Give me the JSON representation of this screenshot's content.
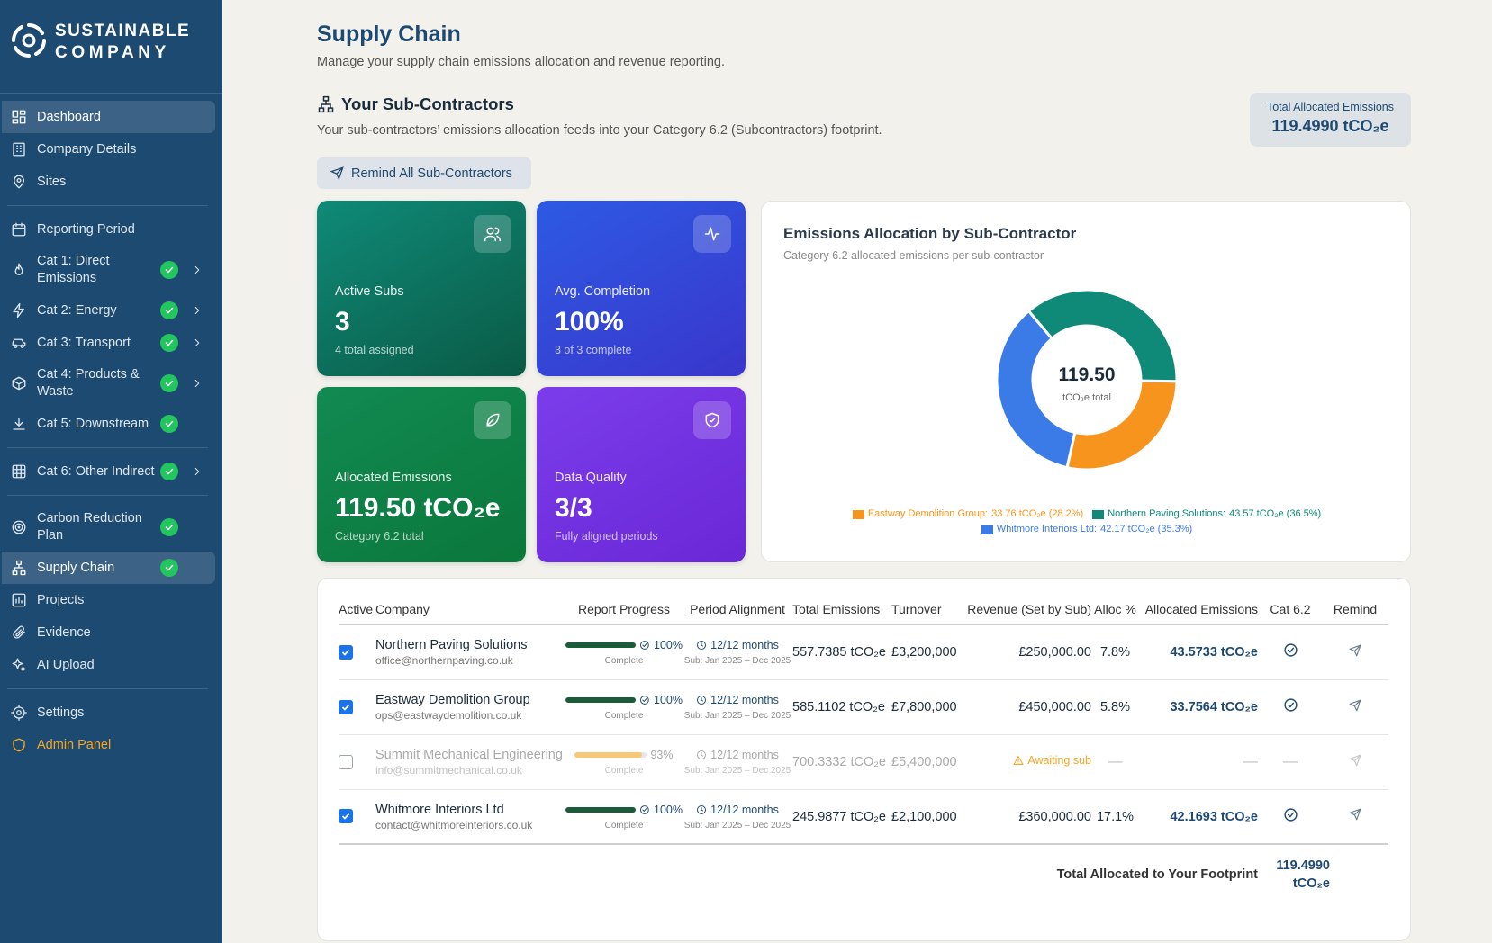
{
  "sidebar": {
    "logo": [
      "SUSTAINABLE",
      "COMPANY"
    ],
    "nav": [
      [
        {
          "label": "Dashboard",
          "active": true
        },
        {
          "label": "Company Details"
        },
        {
          "label": "Sites"
        }
      ],
      [
        {
          "label": "Reporting Period"
        },
        {
          "label": "Cat 1: Direct Emissions",
          "done": true,
          "expand": true
        },
        {
          "label": "Cat 2: Energy",
          "done": true,
          "expand": true
        },
        {
          "label": "Cat 3: Transport",
          "done": true,
          "expand": true
        },
        {
          "label": "Cat 4: Products & Waste",
          "done": true,
          "expand": true
        },
        {
          "label": "Cat 5: Downstream",
          "done": true
        }
      ],
      [
        {
          "label": "Cat 6: Other Indirect",
          "done": true,
          "expand": true
        }
      ],
      [
        {
          "label": "Carbon Reduction Plan",
          "done": true
        },
        {
          "label": "Supply Chain",
          "done": true,
          "active": true
        },
        {
          "label": "Projects"
        },
        {
          "label": "Evidence"
        },
        {
          "label": "AI Upload"
        }
      ],
      [
        {
          "label": "Settings"
        },
        {
          "label": "Admin Panel",
          "admin": true
        }
      ]
    ]
  },
  "header": {
    "title": "Supply Chain",
    "subtitle": "Manage your supply chain emissions allocation and revenue reporting."
  },
  "section": {
    "title": "Your Sub-Contractors",
    "description": "Your sub-contractors’ emissions allocation feeds into your Category 6.2 (Subcontractors) footprint.",
    "button": "Remind All Sub-Contractors"
  },
  "badge": {
    "label": "Total Allocated Emissions",
    "value": "119.4990 tCO₂e"
  },
  "stats": [
    {
      "label": "Active Subs",
      "value": "3",
      "note": "4 total assigned"
    },
    {
      "label": "Avg. Completion",
      "value": "100%",
      "note": "3 of 3 complete"
    },
    {
      "label": "Allocated Emissions",
      "value": "119.50 tCO₂e",
      "note": "Category 6.2 total"
    },
    {
      "label": "Data Quality",
      "value": "3/3",
      "note": "Fully aligned periods"
    }
  ],
  "chart_data": {
    "type": "donut",
    "title": "Emissions Allocation by Sub-Contractor",
    "subtitle": "Category 6.2 allocated emissions per sub-contractor",
    "categories": [
      "Eastway Demolition Group",
      "Northern Paving Solutions",
      "Whitmore Interiors Ltd"
    ],
    "values": [
      33.76,
      43.57,
      42.17
    ],
    "value_labels": [
      "33.76 tCO₂e (28.2%)",
      "43.57 tCO₂e (36.5%)",
      "42.17 tCO₂e (35.3%)"
    ],
    "colors": [
      "#f7941d",
      "#0f8a78",
      "#3b7be8"
    ],
    "center_value": "119.50",
    "center_label": "tCO₂e total"
  },
  "table": {
    "headers": [
      "Active",
      "Company",
      "Report Progress",
      "Period Alignment",
      "Total Emissions",
      "Turnover",
      "Revenue (Set by Sub)",
      "Alloc %",
      "Allocated Emissions",
      "Cat 6.2",
      "Remind"
    ],
    "rows": [
      {
        "active": true,
        "company": "Northern Paving Solutions",
        "email": "office@northernpaving.co.uk",
        "progress": 100,
        "progress_label": "100%",
        "progress_status": "Complete",
        "alignment": "12/12 months",
        "period": "Sub: Jan 2025 – Dec 2025",
        "total": "557.7385 tCO₂e",
        "turnover": "£3,200,000",
        "revenue": "£250,000.00",
        "alloc": "7.8%",
        "allocated": "43.5733 tCO₂e"
      },
      {
        "active": true,
        "company": "Eastway Demolition Group",
        "email": "ops@eastwaydemolition.co.uk",
        "progress": 100,
        "progress_label": "100%",
        "progress_status": "Complete",
        "alignment": "12/12 months",
        "period": "Sub: Jan 2025 – Dec 2025",
        "total": "585.1102 tCO₂e",
        "turnover": "£7,800,000",
        "revenue": "£450,000.00",
        "alloc": "5.8%",
        "allocated": "33.7564 tCO₂e"
      },
      {
        "active": false,
        "pending": true,
        "company": "Summit Mechanical Engineering",
        "email": "info@summitmechanical.co.uk",
        "progress": 93,
        "progress_label": "93%",
        "progress_status": "Complete",
        "alignment": "12/12 months",
        "period": "Sub: Jan 2025 – Dec 2025",
        "total": "700.3332 tCO₂e",
        "turnover": "£5,400,000",
        "revenue": "Awaiting sub",
        "alloc": "—",
        "allocated": "—",
        "cat62": "—"
      },
      {
        "active": true,
        "company": "Whitmore Interiors Ltd",
        "email": "contact@whitmoreinteriors.co.uk",
        "progress": 100,
        "progress_label": "100%",
        "progress_status": "Complete",
        "alignment": "12/12 months",
        "period": "Sub: Jan 2025 – Dec 2025",
        "total": "245.9877 tCO₂e",
        "turnover": "£2,100,000",
        "revenue": "£360,000.00",
        "alloc": "17.1%",
        "allocated": "42.1693 tCO₂e"
      }
    ],
    "footer": {
      "label": "Total Allocated to Your Footprint",
      "value": "119.4990 tCO₂e"
    }
  }
}
